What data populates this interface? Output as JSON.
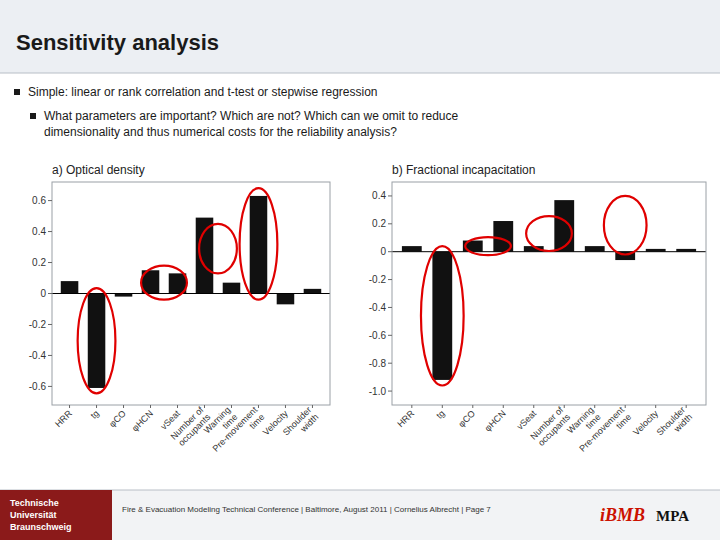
{
  "title": "Sensitivity analysis",
  "bullets": [
    "Simple: linear or rank correlation and t-test or stepwise regression",
    "What parameters are important? Which are not? Which can we omit to reduce\ndimensionality and thus numerical costs for the reliability analysis?"
  ],
  "footer": {
    "institution": [
      "Technische",
      "Universität",
      "Braunschweig"
    ],
    "text": "Fire & Evacuation Modeling Technical Conference  | Baltimore, August 2011  | Cornelius Albrecht | Page 7",
    "logos": [
      "iBMB",
      "MPA"
    ]
  },
  "chart_data": [
    {
      "type": "bar",
      "title": "a) Optical density",
      "categories": [
        "HRR",
        "tg",
        "φCO",
        "φHCN",
        "vSeat",
        "Number of\noccupants",
        "Warning\ntime",
        "Pre-movement\ntime",
        "Velocity",
        "Shoulder\nwidth"
      ],
      "values": [
        0.08,
        -0.61,
        -0.02,
        0.15,
        0.13,
        0.49,
        0.07,
        0.63,
        -0.07,
        0.03
      ],
      "color": "#111111",
      "ylim": [
        -0.72,
        0.72
      ],
      "yticks": [
        -0.6,
        -0.4,
        -0.2,
        0,
        0.2,
        0.4,
        0.6
      ],
      "grid": false,
      "highlights": [
        {
          "x": 1.0,
          "y": -0.305,
          "width": 1.4,
          "height": 0.68
        },
        {
          "x": 3.5,
          "y": 0.07,
          "width": 1.7,
          "height": 0.22
        },
        {
          "x": 5.5,
          "y": 0.29,
          "width": 1.4,
          "height": 0.32
        },
        {
          "x": 7.0,
          "y": 0.32,
          "width": 1.4,
          "height": 0.72
        }
      ]
    },
    {
      "type": "bar",
      "title": "b) Fractional incapacitation",
      "categories": [
        "HRR",
        "tg",
        "φCO",
        "φHCN",
        "vSeat",
        "Number of\noccupants",
        "Warning\ntime",
        "Pre-movement\ntime",
        "Velocity",
        "Shoulder\nwidth"
      ],
      "values": [
        0.04,
        -0.92,
        0.08,
        0.22,
        0.04,
        0.37,
        0.04,
        -0.06,
        0.02,
        0.02
      ],
      "color": "#111111",
      "ylim": [
        -1.1,
        0.5
      ],
      "yticks": [
        {
          "value": -1.0,
          "label": "-1.0"
        },
        -0.8,
        -0.6,
        -0.4,
        -0.2,
        0,
        0.2,
        0.4
      ],
      "grid": false,
      "highlights": [
        {
          "x": 1.0,
          "y": -0.46,
          "width": 1.4,
          "height": 1.0
        },
        {
          "x": 2.5,
          "y": 0.04,
          "width": 1.5,
          "height": 0.13
        },
        {
          "x": 4.5,
          "y": 0.13,
          "width": 1.5,
          "height": 0.25
        },
        {
          "x": 7.0,
          "y": 0.19,
          "width": 1.4,
          "height": 0.42
        }
      ]
    }
  ]
}
